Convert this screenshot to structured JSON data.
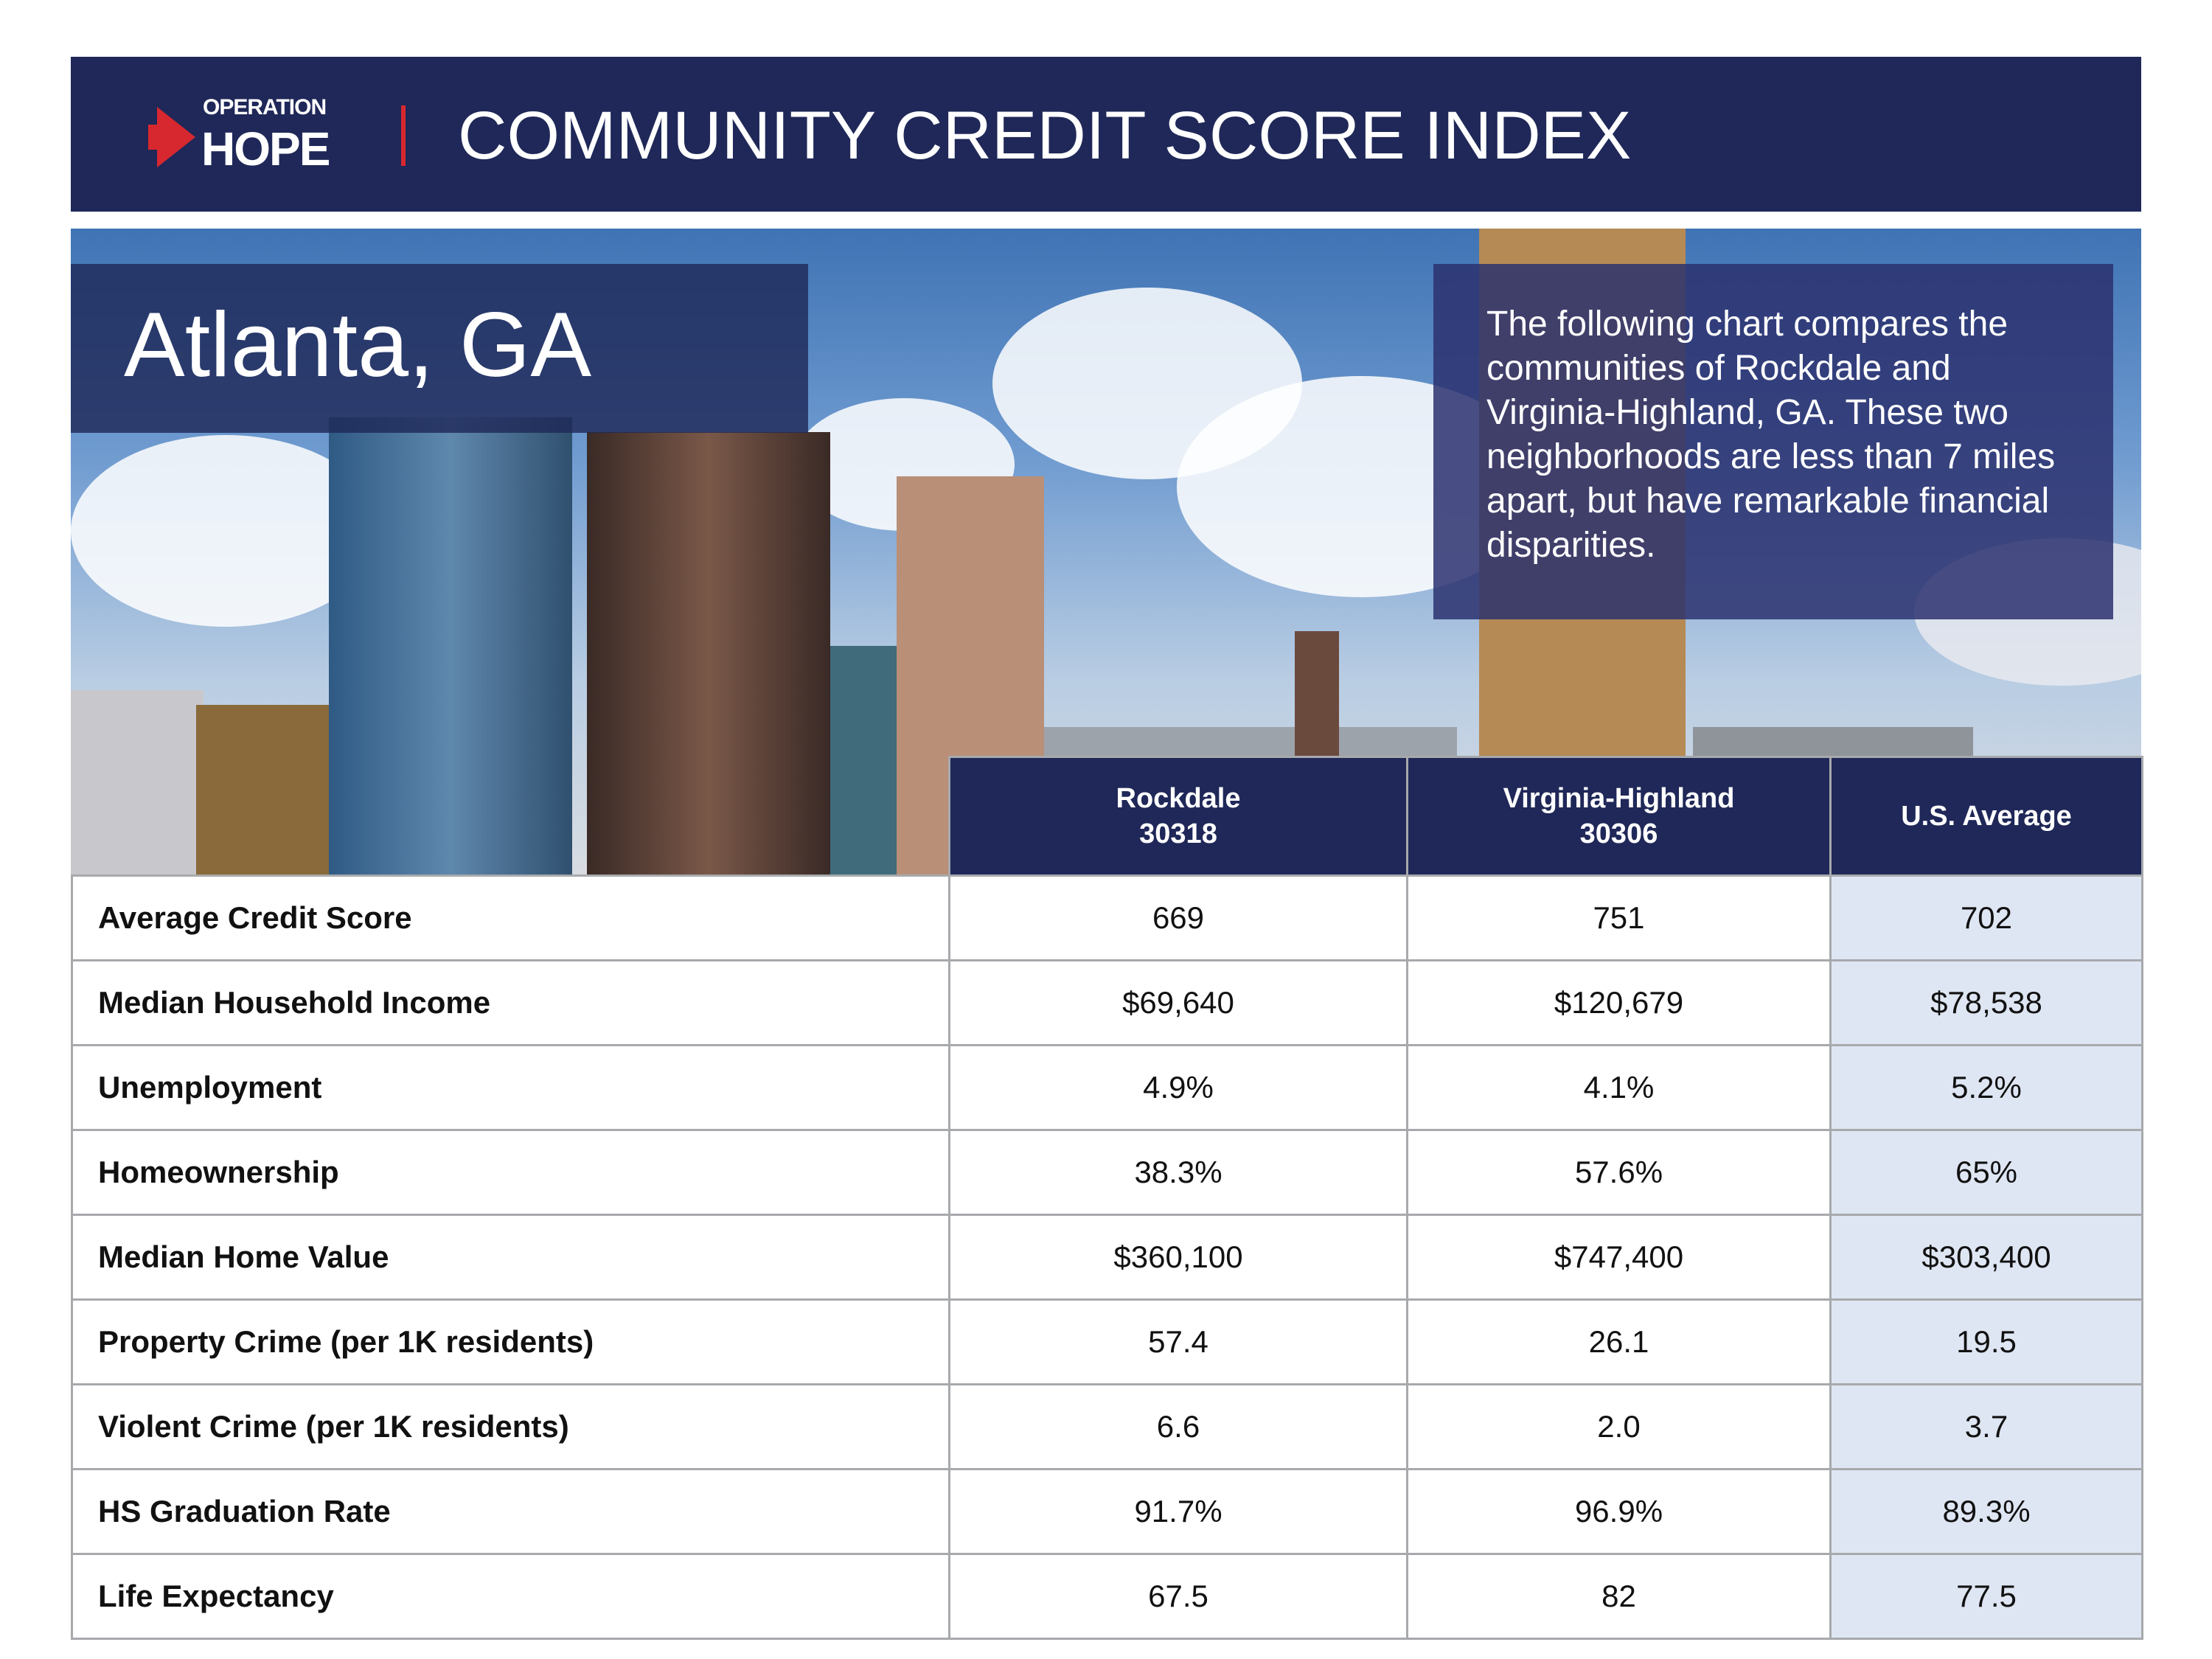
{
  "header": {
    "logo_top": "OPERATION",
    "logo_bottom": "HOPE",
    "title": "COMMUNITY CREDIT SCORE INDEX",
    "brand_color": "#1f2858",
    "accent_color": "#d7282f"
  },
  "hero": {
    "city": "Atlanta, GA",
    "description": "The following chart compares the communities of Rockdale and Virginia-Highland, GA. These two neighborhoods are less than 7 miles apart, but have remarkable financial disparities."
  },
  "table": {
    "columns": [
      {
        "name": "Rockdale",
        "zip": "30318"
      },
      {
        "name": "Virginia-Highland",
        "zip": "30306"
      },
      {
        "name": "U.S. Average",
        "zip": ""
      }
    ],
    "rows": [
      {
        "label": "Average Credit Score",
        "values": [
          "669",
          "751",
          "702"
        ]
      },
      {
        "label": "Median Household Income",
        "values": [
          "$69,640",
          "$120,679",
          "$78,538"
        ]
      },
      {
        "label": "Unemployment",
        "values": [
          "4.9%",
          "4.1%",
          "5.2%"
        ]
      },
      {
        "label": "Homeownership",
        "values": [
          "38.3%",
          "57.6%",
          "65%"
        ]
      },
      {
        "label": "Median Home Value",
        "values": [
          "$360,100",
          "$747,400",
          "$303,400"
        ]
      },
      {
        "label": "Property Crime (per 1K residents)",
        "values": [
          "57.4",
          "26.1",
          "19.5"
        ]
      },
      {
        "label": "Violent Crime (per 1K residents)",
        "values": [
          "6.6",
          "2.0",
          "3.7"
        ]
      },
      {
        "label": "HS Graduation Rate",
        "values": [
          "91.7%",
          "96.9%",
          "89.3%"
        ]
      },
      {
        "label": "Life Expectancy",
        "values": [
          "67.5",
          "82",
          "77.5"
        ]
      }
    ]
  }
}
